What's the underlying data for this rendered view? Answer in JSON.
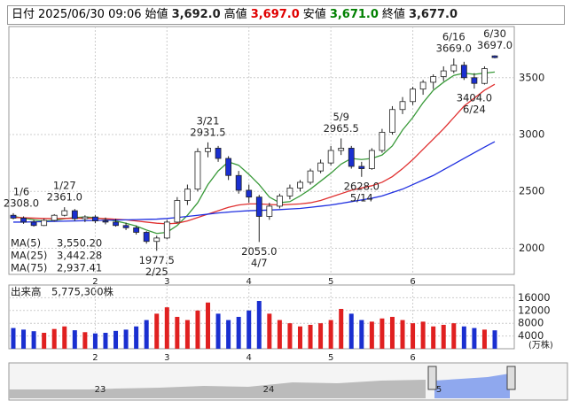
{
  "chart_data": [
    {
      "type": "candlestick",
      "header": {
        "date_label": "日付",
        "date": "2025/06/30 09:06",
        "fields": [
          {
            "label": "始値",
            "value": "3,692.0",
            "color": "#222"
          },
          {
            "label": "高値",
            "value": "3,697.0",
            "color": "#e00000"
          },
          {
            "label": "安値",
            "value": "3,671.0",
            "color": "#008000"
          },
          {
            "label": "終値",
            "value": "3,677.0",
            "color": "#222"
          }
        ]
      },
      "categories": [
        null,
        null,
        null,
        null,
        null,
        null,
        null,
        null,
        "2",
        null,
        null,
        null,
        null,
        null,
        null,
        "3",
        null,
        null,
        null,
        null,
        null,
        null,
        null,
        "4",
        null,
        null,
        null,
        null,
        null,
        null,
        null,
        "5",
        null,
        null,
        null,
        null,
        null,
        null,
        null,
        "6",
        null,
        null,
        null,
        null,
        null,
        null,
        null,
        null
      ],
      "open": [
        2290,
        2265,
        2230,
        2200,
        2245,
        2290,
        2330,
        2260,
        2275,
        2240,
        2230,
        2200,
        2180,
        2140,
        2060,
        2090,
        2230,
        2420,
        2520,
        2850,
        2880,
        2790,
        2640,
        2510,
        2450,
        2280,
        2370,
        2460,
        2530,
        2580,
        2680,
        2750,
        2860,
        2880,
        2720,
        2700,
        2860,
        3020,
        3220,
        3290,
        3400,
        3460,
        3510,
        3560,
        3610,
        3500,
        3450,
        3692
      ],
      "high": [
        2308,
        2280,
        2250,
        2260,
        2300,
        2361,
        2345,
        2290,
        2290,
        2270,
        2260,
        2225,
        2200,
        2150,
        2110,
        2250,
        2450,
        2560,
        2880,
        2931.5,
        2900,
        2810,
        2680,
        2560,
        2470,
        2400,
        2480,
        2560,
        2600,
        2700,
        2780,
        2900,
        2965.5,
        2900,
        2760,
        2880,
        3050,
        3250,
        3330,
        3420,
        3480,
        3530,
        3600,
        3669,
        3640,
        3540,
        3600,
        3697
      ],
      "low": [
        2255,
        2215,
        2190,
        2195,
        2235,
        2280,
        2240,
        2230,
        2220,
        2210,
        2190,
        2160,
        2120,
        2040,
        1977.5,
        2080,
        2220,
        2380,
        2500,
        2800,
        2760,
        2600,
        2480,
        2400,
        2055,
        2250,
        2350,
        2430,
        2500,
        2560,
        2660,
        2730,
        2820,
        2700,
        2628,
        2690,
        2840,
        3000,
        3180,
        3260,
        3350,
        3400,
        3470,
        3540,
        3480,
        3404,
        3440,
        3671
      ],
      "close": [
        2265,
        2230,
        2200,
        2245,
        2290,
        2330,
        2260,
        2275,
        2240,
        2230,
        2200,
        2180,
        2140,
        2060,
        2090,
        2230,
        2420,
        2520,
        2850,
        2880,
        2790,
        2640,
        2510,
        2450,
        2280,
        2370,
        2460,
        2530,
        2580,
        2680,
        2750,
        2860,
        2880,
        2720,
        2700,
        2860,
        3020,
        3220,
        3290,
        3400,
        3460,
        3510,
        3560,
        3610,
        3500,
        3450,
        3580,
        3677
      ],
      "up_color": "#ffffff",
      "down_color": "#1a2fd0",
      "series": [
        {
          "name": "MA(5)",
          "label": "3,550.20",
          "color": "#3a9a3a",
          "values": [
            2280,
            2265,
            2250,
            2240,
            2245,
            2260,
            2270,
            2275,
            2270,
            2255,
            2240,
            2220,
            2195,
            2160,
            2130,
            2140,
            2200,
            2290,
            2400,
            2560,
            2680,
            2760,
            2730,
            2650,
            2560,
            2450,
            2400,
            2410,
            2460,
            2520,
            2590,
            2660,
            2740,
            2790,
            2780,
            2790,
            2820,
            2900,
            3040,
            3150,
            3280,
            3390,
            3460,
            3520,
            3540,
            3530,
            3540,
            3550.2
          ]
        },
        {
          "name": "MA(25)",
          "label": "3,442.28",
          "color": "#e03030",
          "values": [
            2270,
            2268,
            2265,
            2262,
            2260,
            2262,
            2264,
            2265,
            2264,
            2260,
            2255,
            2250,
            2240,
            2230,
            2220,
            2215,
            2220,
            2240,
            2270,
            2300,
            2330,
            2360,
            2380,
            2390,
            2390,
            2385,
            2380,
            2385,
            2390,
            2400,
            2420,
            2450,
            2480,
            2510,
            2530,
            2550,
            2580,
            2630,
            2700,
            2780,
            2870,
            2960,
            3050,
            3150,
            3250,
            3320,
            3390,
            3442.28
          ]
        },
        {
          "name": "MA(75)",
          "label": "2,937.41",
          "color": "#2030e0",
          "values": [
            2230,
            2230,
            2232,
            2234,
            2236,
            2238,
            2240,
            2242,
            2244,
            2246,
            2248,
            2250,
            2252,
            2254,
            2256,
            2262,
            2270,
            2280,
            2290,
            2300,
            2310,
            2318,
            2325,
            2330,
            2333,
            2336,
            2340,
            2345,
            2350,
            2360,
            2370,
            2380,
            2395,
            2410,
            2425,
            2440,
            2460,
            2490,
            2520,
            2560,
            2600,
            2640,
            2690,
            2740,
            2790,
            2840,
            2890,
            2937.41
          ]
        }
      ],
      "annotations": [
        {
          "date": "1/6",
          "value": 2308,
          "label": "2308.0"
        },
        {
          "date": "1/27",
          "value": 2361,
          "label": "2361.0"
        },
        {
          "date": "2/25",
          "value": 1977.5,
          "label": "1977.5"
        },
        {
          "date": "3/21",
          "value": 2931.5,
          "label": "2931.5"
        },
        {
          "date": "4/7",
          "value": 2055,
          "label": "2055.0"
        },
        {
          "date": "5/9",
          "value": 2965.5,
          "label": "2965.5"
        },
        {
          "date": "5/14",
          "value": 2628,
          "label": "2628.0"
        },
        {
          "date": "6/16",
          "value": 3669,
          "label": "3669.0"
        },
        {
          "date": "6/24",
          "value": 3404,
          "label": "3404.0"
        },
        {
          "date": "6/30",
          "value": 3697,
          "label": "3697.0"
        }
      ],
      "ylim": [
        1770,
        3950
      ],
      "yticks": [
        2000,
        2500,
        3000,
        3500
      ],
      "grid": true
    },
    {
      "type": "bar",
      "title": "出来高",
      "subtitle": "5,775,300株",
      "unit": "(万株)",
      "values": [
        6500,
        6000,
        5500,
        5000,
        6200,
        7000,
        5800,
        5200,
        4800,
        5000,
        5600,
        6000,
        7000,
        9000,
        11000,
        13000,
        10000,
        9000,
        12000,
        14500,
        11000,
        9000,
        10000,
        12000,
        15000,
        11000,
        9000,
        8000,
        7000,
        7500,
        8000,
        9000,
        12500,
        11000,
        9000,
        8500,
        9500,
        10000,
        9000,
        8000,
        8500,
        7000,
        7500,
        8000,
        7000,
        6500,
        6000,
        5775.3
      ],
      "ylim": [
        0,
        20000
      ],
      "yticks": [
        4000,
        8000,
        12000,
        16000
      ],
      "grid": true
    },
    {
      "type": "navigator",
      "labels": [
        "23",
        "24",
        "5"
      ]
    }
  ]
}
